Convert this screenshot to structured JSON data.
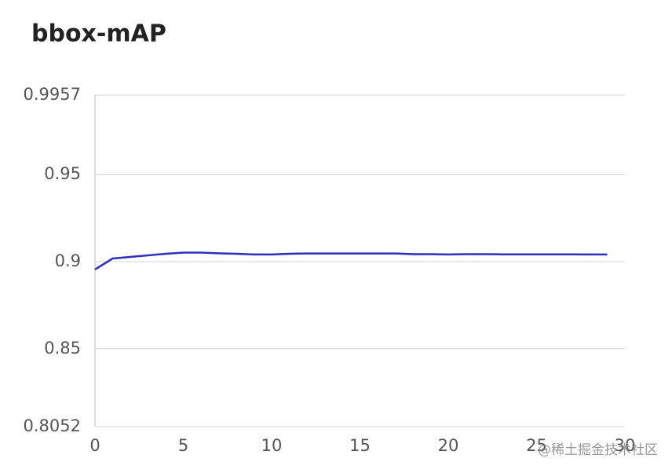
{
  "chart_data": {
    "type": "line",
    "title": "bbox-mAP",
    "x": [
      0,
      1,
      2,
      3,
      4,
      5,
      6,
      7,
      8,
      9,
      10,
      11,
      12,
      13,
      14,
      15,
      16,
      17,
      18,
      19,
      20,
      21,
      22,
      23,
      24,
      25,
      26,
      27,
      28,
      29
    ],
    "series": [
      {
        "name": "bbox-mAP",
        "color": "#2e2fbf",
        "values": [
          0.8955,
          0.9018,
          0.9027,
          0.9036,
          0.9045,
          0.9052,
          0.9052,
          0.9048,
          0.9045,
          0.9041,
          0.9041,
          0.9045,
          0.9047,
          0.9047,
          0.9047,
          0.9047,
          0.9047,
          0.9047,
          0.9043,
          0.9043,
          0.9041,
          0.9043,
          0.9043,
          0.9042,
          0.9042,
          0.9042,
          0.9042,
          0.9042,
          0.9041,
          0.9041
        ]
      }
    ],
    "xlim": [
      0,
      30
    ],
    "xticks": [
      0,
      5,
      10,
      15,
      20,
      25,
      30
    ],
    "ylim": [
      0.8052,
      0.9957
    ],
    "yticks": [
      0.8052,
      0.85,
      0.9,
      0.95,
      0.9957
    ],
    "grid": true,
    "watermark": "@稀土掘金技术社区"
  }
}
